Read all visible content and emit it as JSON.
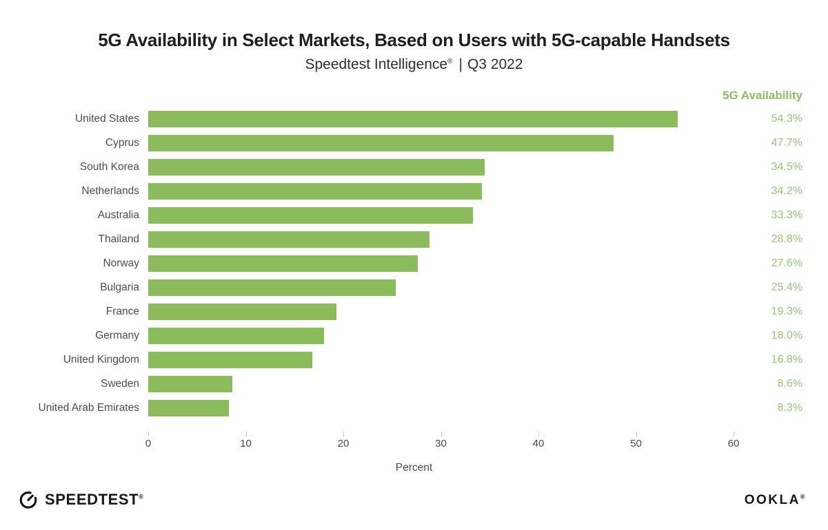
{
  "header": {
    "title": "5G Availability in Select Markets, Based on Users with 5G-capable Handsets",
    "subtitle": {
      "brand": "Speedtest Intelligence",
      "registered": "®",
      "separator": "|",
      "period": "Q3 2022"
    }
  },
  "chart_data": {
    "type": "bar",
    "orientation": "horizontal",
    "title": "5G Availability in Select Markets, Based on Users with 5G-capable Handsets",
    "subtitle": "Speedtest Intelligence® | Q3 2022",
    "value_column_header": "5G Availability",
    "categories": [
      "United States",
      "Cyprus",
      "South Korea",
      "Netherlands",
      "Australia",
      "Thailand",
      "Norway",
      "Bulgaria",
      "France",
      "Germany",
      "United Kingdom",
      "Sweden",
      "United Arab Emirates"
    ],
    "values": [
      54.3,
      47.7,
      34.5,
      34.2,
      33.3,
      28.8,
      27.6,
      25.4,
      19.3,
      18.0,
      16.8,
      8.6,
      8.3
    ],
    "value_labels": [
      "54.3%",
      "47.7%",
      "34.5%",
      "34.2%",
      "33.3%",
      "28.8%",
      "27.6%",
      "25.4%",
      "19.3%",
      "18.0%",
      "16.8%",
      "8.6%",
      "8.3%"
    ],
    "xlabel": "Percent",
    "xticks": [
      0,
      10,
      20,
      30,
      40,
      50,
      60
    ],
    "xlim": [
      0,
      60
    ],
    "grid": false,
    "legend_position": "none",
    "colors": {
      "bar": "#8abc5c",
      "value_text": "#97c573",
      "header_text": "#8bbd62",
      "label_text": "#4c4c4c",
      "axis_text": "#474747",
      "tick_mark": "#c3cbb9"
    }
  },
  "footer": {
    "speedtest_label": "SPEEDTEST",
    "speedtest_mark": "®",
    "ookla_label": "OOKLA",
    "ookla_mark": "®"
  }
}
